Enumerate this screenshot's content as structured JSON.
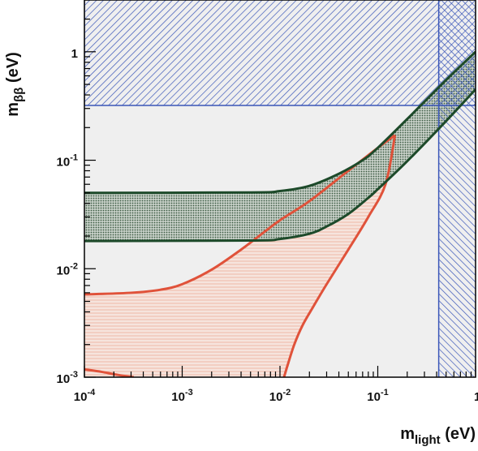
{
  "chart_data": {
    "type": "line",
    "title": "",
    "xlabel": {
      "main": "m",
      "sub": "light",
      "unit": " (eV)"
    },
    "ylabel": {
      "main": "m",
      "sub": "ββ",
      "unit": " (eV)"
    },
    "x_scale": "log",
    "y_scale": "log",
    "xlim": [
      0.0001,
      1
    ],
    "ylim": [
      0.001,
      3
    ],
    "x_ticks": [
      {
        "value": 0.0001,
        "base": "10",
        "exp": "-4"
      },
      {
        "value": 0.001,
        "base": "10",
        "exp": "-3"
      },
      {
        "value": 0.01,
        "base": "10",
        "exp": "-2"
      },
      {
        "value": 0.1,
        "base": "10",
        "exp": "-1"
      },
      {
        "value": 1,
        "base": "1",
        "exp": ""
      }
    ],
    "y_ticks": [
      {
        "value": 0.001,
        "base": "10",
        "exp": "-3"
      },
      {
        "value": 0.01,
        "base": "10",
        "exp": "-2"
      },
      {
        "value": 0.1,
        "base": "10",
        "exp": "-1"
      },
      {
        "value": 1,
        "base": "1",
        "exp": ""
      }
    ],
    "grid": false,
    "legend": "none",
    "regions": {
      "excluded_mbb": {
        "y_min": 0.32,
        "color": "#3a56b8"
      },
      "excluded_mlight": {
        "x_min": 0.42,
        "color": "#3a56b8"
      },
      "inverted_band": {
        "color": "#1d4a2a",
        "upper": [
          [
            0.0001,
            0.05
          ],
          [
            0.005,
            0.0505
          ],
          [
            0.01,
            0.052
          ],
          [
            0.02,
            0.058
          ],
          [
            0.04,
            0.075
          ],
          [
            0.07,
            0.1
          ],
          [
            0.1,
            0.13
          ],
          [
            0.2,
            0.24
          ],
          [
            0.5,
            0.55
          ],
          [
            1,
            1.0
          ]
        ],
        "lower": [
          [
            0.0001,
            0.018
          ],
          [
            0.005,
            0.0182
          ],
          [
            0.01,
            0.0188
          ],
          [
            0.02,
            0.021
          ],
          [
            0.03,
            0.0245
          ],
          [
            0.05,
            0.032
          ],
          [
            0.08,
            0.045
          ],
          [
            0.1,
            0.054
          ],
          [
            0.2,
            0.098
          ],
          [
            0.5,
            0.23
          ],
          [
            1,
            0.45
          ]
        ]
      },
      "normal_band": {
        "color": "#e0523a",
        "upper": [
          [
            0.0001,
            0.0058
          ],
          [
            0.0003,
            0.006
          ],
          [
            0.0006,
            0.0064
          ],
          [
            0.001,
            0.0072
          ],
          [
            0.002,
            0.0098
          ],
          [
            0.004,
            0.015
          ],
          [
            0.007,
            0.022
          ],
          [
            0.01,
            0.028
          ],
          [
            0.02,
            0.042
          ],
          [
            0.05,
            0.08
          ],
          [
            0.1,
            0.13
          ],
          [
            0.15,
            0.17
          ]
        ],
        "lower": [
          [
            0.011,
            0.001
          ],
          [
            0.012,
            0.0013
          ],
          [
            0.014,
            0.002
          ],
          [
            0.017,
            0.003
          ],
          [
            0.022,
            0.0045
          ],
          [
            0.03,
            0.0072
          ],
          [
            0.05,
            0.015
          ],
          [
            0.08,
            0.03
          ],
          [
            0.12,
            0.06
          ],
          [
            0.15,
            0.17
          ]
        ],
        "lower_tail": [
          [
            0.0001,
            0.00118
          ],
          [
            0.00015,
            0.00112
          ],
          [
            0.00022,
            0.00105
          ],
          [
            0.00032,
            0.001
          ]
        ]
      }
    }
  }
}
